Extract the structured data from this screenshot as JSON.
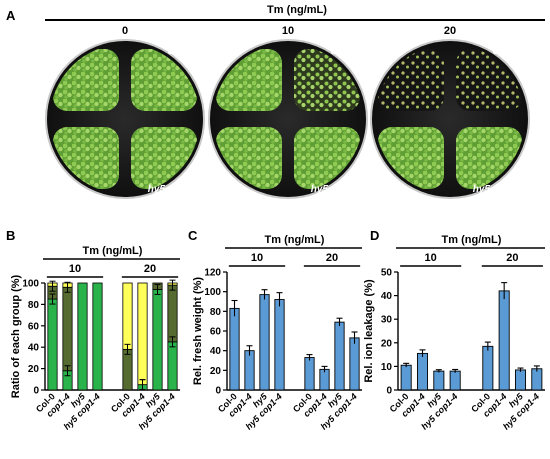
{
  "panel_letters": {
    "a": "A",
    "b": "B",
    "c": "C",
    "d": "D"
  },
  "header_label": "Tm (ng/mL)",
  "photo_concentrations": [
    "0",
    "10",
    "20"
  ],
  "photo_quadrant_labels": {
    "top_left": "Col-0",
    "top_right": "cop1-4",
    "bottom_left": "hy5",
    "bottom_right": "hy5 cop1-4"
  },
  "colors": {
    "bar_blue": "#5b9bd5",
    "bar_yellow": "#ffff5a",
    "bar_darkgreen": "#556b2f",
    "bar_green": "#2ab34a",
    "plate_bg": "#111111",
    "plant_green": "#7cc242",
    "plant_light": "#a5d26a"
  },
  "chart_data": [
    {
      "id": "B",
      "type": "bar",
      "ylabel": "Ratio of each group (%)",
      "ylim": [
        0,
        100
      ],
      "yticks": [
        "0",
        "20",
        "40",
        "60",
        "80",
        "100"
      ],
      "condition_header": "Tm (ng/mL)",
      "groups": [
        {
          "label": "10",
          "categories": [
            "Col-0",
            "cop1-4",
            "hy5",
            "hy5 cop1-4"
          ]
        },
        {
          "label": "20",
          "categories": [
            "Col-0",
            "cop1-4",
            "hy5",
            "hy5 cop1-4"
          ]
        }
      ],
      "stacks": [
        {
          "green": 85,
          "darkgreen": 12,
          "yellow": 3
        },
        {
          "green": 18,
          "darkgreen": 78,
          "yellow": 4
        },
        {
          "green": 100,
          "darkgreen": 0,
          "yellow": 0
        },
        {
          "green": 100,
          "darkgreen": 0,
          "yellow": 0
        },
        {
          "green": 0,
          "darkgreen": 38,
          "yellow": 62
        },
        {
          "green": 5,
          "darkgreen": 0,
          "yellow": 95
        },
        {
          "green": 94,
          "darkgreen": 6,
          "yellow": 0
        },
        {
          "green": 45,
          "darkgreen": 53,
          "yellow": 2
        }
      ],
      "legend": ""
    },
    {
      "id": "C",
      "type": "bar",
      "ylabel": "Rel. fresh weight (%)",
      "ylim": [
        0,
        120
      ],
      "yticks": [
        "0",
        "20",
        "40",
        "60",
        "80",
        "100",
        "120"
      ],
      "condition_header": "Tm (ng/mL)",
      "groups": [
        {
          "label": "10",
          "categories": [
            "Col-0",
            "cop1-4",
            "hy5",
            "hy5 cop1-4"
          ]
        },
        {
          "label": "20",
          "categories": [
            "Col-0",
            "cop1-4",
            "hy5",
            "hy5 cop1-4"
          ]
        }
      ],
      "values": [
        83,
        40,
        97,
        92,
        33,
        21,
        69,
        53
      ],
      "errors": [
        8,
        5,
        5,
        7,
        3,
        3,
        4,
        6
      ]
    },
    {
      "id": "D",
      "type": "bar",
      "ylabel": "Rel. ion leakage (%)",
      "ylim": [
        0,
        50
      ],
      "yticks": [
        "0",
        "10",
        "20",
        "30",
        "40",
        "50"
      ],
      "condition_header": "Tm (ng/mL)",
      "groups": [
        {
          "label": "10",
          "categories": [
            "Col-0",
            "cop1-4",
            "hy5",
            "hy5 cop1-4"
          ]
        },
        {
          "label": "20",
          "categories": [
            "Col-0",
            "cop1-4",
            "hy5",
            "hy5 cop1-4"
          ]
        }
      ],
      "values": [
        10.5,
        15.5,
        8,
        8,
        18.5,
        42,
        8.5,
        9
      ],
      "errors": [
        0.8,
        1.5,
        0.6,
        0.7,
        1.8,
        3.5,
        0.8,
        1.2
      ]
    }
  ]
}
